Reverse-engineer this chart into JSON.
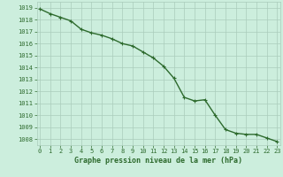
{
  "x": [
    0,
    1,
    2,
    3,
    4,
    5,
    6,
    7,
    8,
    9,
    10,
    11,
    12,
    13,
    14,
    15,
    16,
    17,
    18,
    19,
    20,
    21,
    22,
    23
  ],
  "y": [
    1018.9,
    1018.5,
    1018.2,
    1017.9,
    1017.2,
    1016.9,
    1016.7,
    1016.4,
    1016.0,
    1015.8,
    1015.3,
    1014.8,
    1014.1,
    1013.1,
    1011.5,
    1011.2,
    1011.3,
    1010.0,
    1008.8,
    1008.5,
    1008.4,
    1008.4,
    1008.1,
    1007.8
  ],
  "line_color": "#2d6a2d",
  "marker": "+",
  "bg_color": "#cceedd",
  "grid_color": "#aaccbb",
  "xlabel": "Graphe pression niveau de la mer (hPa)",
  "xlabel_color": "#2d6a2d",
  "tick_color": "#2d6a2d",
  "ylim_min": 1007.5,
  "ylim_max": 1019.5,
  "xlim_min": -0.3,
  "xlim_max": 23.3,
  "yticks": [
    1008,
    1009,
    1010,
    1011,
    1012,
    1013,
    1014,
    1015,
    1016,
    1017,
    1018,
    1019
  ],
  "xticks": [
    0,
    1,
    2,
    3,
    4,
    5,
    6,
    7,
    8,
    9,
    10,
    11,
    12,
    13,
    14,
    15,
    16,
    17,
    18,
    19,
    20,
    21,
    22,
    23
  ],
  "linewidth": 1.0,
  "markersize": 3.5,
  "tick_fontsize": 5.0,
  "xlabel_fontsize": 6.0
}
